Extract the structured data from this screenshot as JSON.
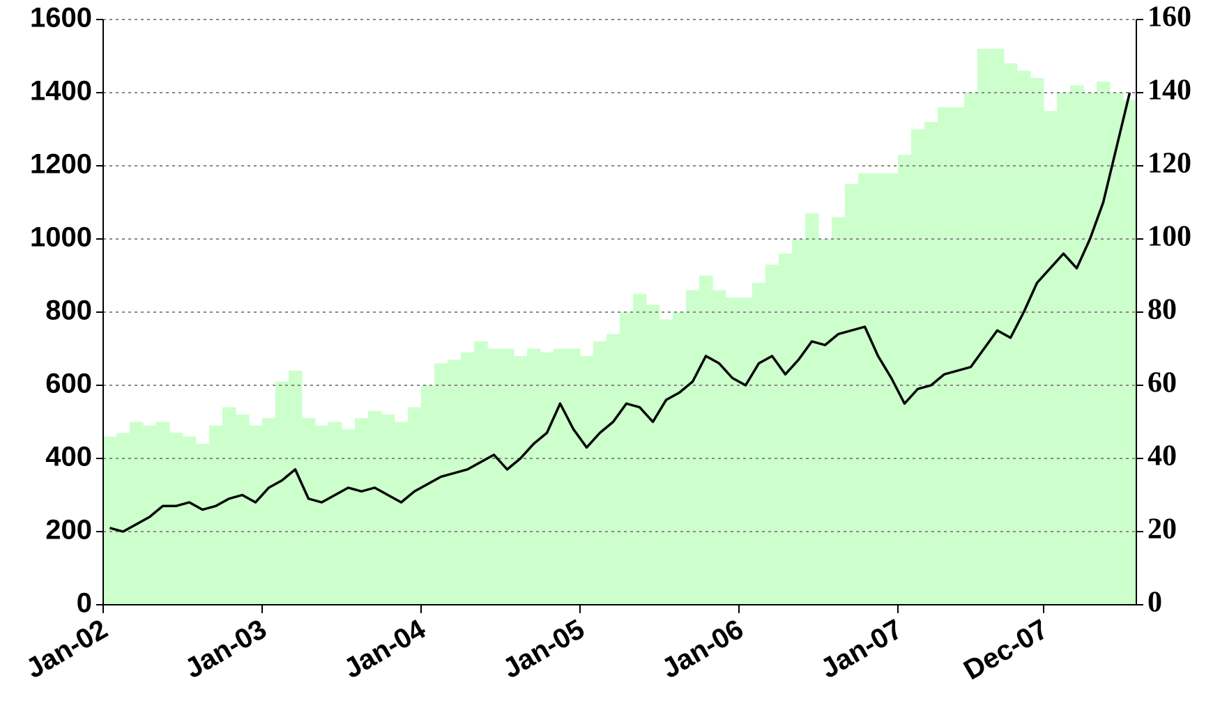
{
  "chart_data": {
    "type": "bar",
    "categories": [
      "Jan-02",
      null,
      null,
      null,
      null,
      null,
      null,
      null,
      null,
      null,
      null,
      null,
      "Jan-03",
      null,
      null,
      null,
      null,
      null,
      null,
      null,
      null,
      null,
      null,
      null,
      "Jan-04",
      null,
      null,
      null,
      null,
      null,
      null,
      null,
      null,
      null,
      null,
      null,
      "Jan-05",
      null,
      null,
      null,
      null,
      null,
      null,
      null,
      null,
      null,
      null,
      null,
      "Jan-06",
      null,
      null,
      null,
      null,
      null,
      null,
      null,
      null,
      null,
      null,
      null,
      "Jan-07",
      null,
      null,
      null,
      null,
      null,
      null,
      null,
      null,
      null,
      null,
      "Dec-07",
      null,
      null,
      null,
      null,
      null,
      null
    ],
    "series": [
      {
        "type": "bar",
        "color": "#ccffcc",
        "values": [
          460,
          470,
          500,
          490,
          500,
          470,
          460,
          440,
          490,
          540,
          520,
          490,
          510,
          610,
          640,
          510,
          490,
          500,
          480,
          510,
          530,
          520,
          500,
          540,
          600,
          660,
          670,
          690,
          720,
          700,
          700,
          680,
          700,
          690,
          700,
          700,
          680,
          720,
          740,
          800,
          850,
          820,
          780,
          800,
          860,
          900,
          860,
          840,
          840,
          880,
          930,
          960,
          1000,
          1070,
          1000,
          1060,
          1150,
          1180,
          1180,
          1180,
          1230,
          1300,
          1320,
          1360,
          1360,
          1400,
          1520,
          1520,
          1480,
          1460,
          1440,
          1350,
          1400,
          1420,
          1400,
          1430,
          1400,
          1380
        ]
      },
      {
        "type": "line",
        "axis": "y2",
        "color": "#000000",
        "values": [
          21,
          20,
          22,
          24,
          27,
          27,
          28,
          26,
          27,
          29,
          30,
          28,
          32,
          34,
          37,
          29,
          28,
          30,
          32,
          31,
          32,
          30,
          28,
          31,
          33,
          35,
          36,
          37,
          39,
          41,
          37,
          40,
          44,
          47,
          55,
          48,
          43,
          47,
          50,
          55,
          54,
          50,
          56,
          58,
          61,
          68,
          66,
          62,
          60,
          66,
          68,
          63,
          67,
          72,
          71,
          74,
          75,
          76,
          68,
          62,
          55,
          59,
          60,
          63,
          64,
          65,
          70,
          75,
          73,
          80,
          88,
          92,
          96,
          92,
          100,
          110,
          125,
          140
        ]
      }
    ],
    "ylim": [
      0,
      1600
    ],
    "yticks": [
      0,
      200,
      400,
      600,
      800,
      1000,
      1200,
      1400,
      1600
    ],
    "y2lim": [
      0,
      160
    ],
    "y2ticks": [
      0,
      20,
      40,
      60,
      80,
      100,
      120,
      140,
      160
    ],
    "grid": true
  }
}
